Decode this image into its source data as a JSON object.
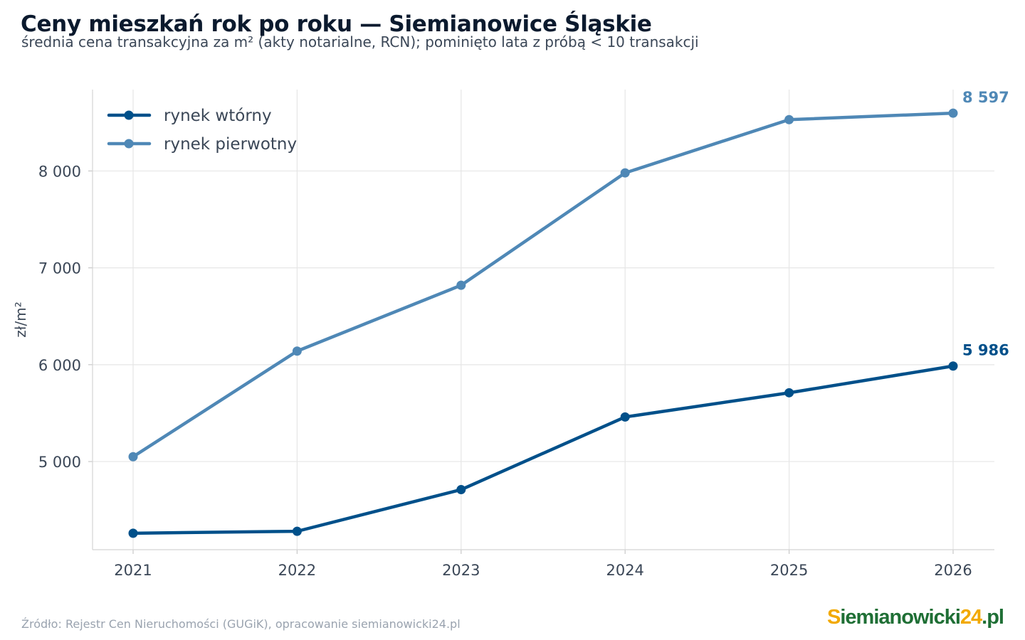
{
  "title": "Ceny mieszkań rok po roku — Siemianowice Śląskie",
  "subtitle": "średnia cena transakcyjna za m² (akty notarialne, RCN); pominięto lata z próbą < 10 transakcji",
  "source": "Źródło: Rejestr Cen Nieruchomości (GUGiK), opracowanie siemianowicki24.pl",
  "logo": {
    "part1": "S",
    "part2": "iemianowicki",
    "part3": "24",
    "part4": ".pl"
  },
  "chart_data": {
    "type": "line",
    "x": [
      2021,
      2022,
      2023,
      2024,
      2025,
      2026
    ],
    "x_tick_labels": [
      "2021",
      "2022",
      "2023",
      "2024",
      "2025",
      "2026"
    ],
    "ylabel": "zł/m²",
    "ylim": [
      4090,
      8840
    ],
    "y_ticks": [
      5000,
      6000,
      7000,
      8000
    ],
    "y_tick_labels": [
      "5 000",
      "6 000",
      "7 000",
      "8 000"
    ],
    "grid": true,
    "legend_position": "top-left",
    "series": [
      {
        "name": "rynek wtórny",
        "color": "#00508a",
        "values": [
          4260,
          4280,
          4710,
          5460,
          5710,
          5986
        ],
        "end_label": "5 986"
      },
      {
        "name": "rynek pierwotny",
        "color": "#4f88b6",
        "values": [
          5050,
          6140,
          6820,
          7980,
          8530,
          8597
        ],
        "end_label": "8 597"
      }
    ]
  }
}
